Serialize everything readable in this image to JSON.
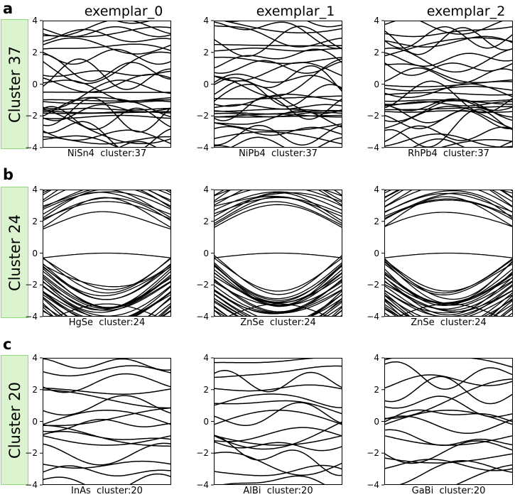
{
  "panel_letters": [
    "a",
    "b",
    "c"
  ],
  "column_titles": [
    "exemplar_0",
    "exemplar_1",
    "exemplar_2"
  ],
  "row_labels": [
    "Cluster 37",
    "Cluster 24",
    "Cluster 20"
  ],
  "badge_color": "#dcf3d0",
  "badge_border": "#8fd97a",
  "chart_data": [
    {
      "type": "line",
      "panel": "a",
      "cluster": 37,
      "material": "NiSn4",
      "caption": "NiSn4  cluster:37",
      "ylim": [
        -4,
        4
      ],
      "yticks": [
        "4",
        "2",
        "0",
        "−2",
        "−4"
      ],
      "style": "metal",
      "seed": 11
    },
    {
      "type": "line",
      "panel": "a",
      "cluster": 37,
      "material": "NiPb4",
      "caption": "NiPb4  cluster:37",
      "ylim": [
        -4,
        4
      ],
      "yticks": [
        "4",
        "2",
        "0",
        "−2",
        "−4"
      ],
      "style": "metal",
      "seed": 23
    },
    {
      "type": "line",
      "panel": "a",
      "cluster": 37,
      "material": "RhPb4",
      "caption": "RhPb4  cluster:37",
      "ylim": [
        -4,
        4
      ],
      "yticks": [
        "4",
        "2",
        "0",
        "−2",
        "−4"
      ],
      "style": "metal",
      "seed": 37
    },
    {
      "type": "line",
      "panel": "b",
      "cluster": 24,
      "material": "HgSe",
      "caption": "HgSe  cluster:24",
      "ylim": [
        -4,
        4
      ],
      "yticks": [
        "4",
        "2",
        "0",
        "−2",
        "−4"
      ],
      "style": "dense",
      "seed": 41
    },
    {
      "type": "line",
      "panel": "b",
      "cluster": 24,
      "material": "ZnSe",
      "caption": "ZnSe  cluster:24",
      "ylim": [
        -4,
        4
      ],
      "yticks": [
        "4",
        "2",
        "0",
        "−2",
        "−4"
      ],
      "style": "dense",
      "seed": 53
    },
    {
      "type": "line",
      "panel": "b",
      "cluster": 24,
      "material": "ZnSe",
      "caption": "ZnSe  cluster:24",
      "ylim": [
        -4,
        4
      ],
      "yticks": [
        "4",
        "2",
        "0",
        "−2",
        "−4"
      ],
      "style": "dense",
      "seed": 67
    },
    {
      "type": "line",
      "panel": "c",
      "cluster": 20,
      "material": "InAs",
      "caption": "InAs  cluster:20",
      "ylim": [
        -4,
        4
      ],
      "yticks": [
        "4",
        "2",
        "0",
        "−2",
        "−4"
      ],
      "style": "sparse",
      "seed": 71
    },
    {
      "type": "line",
      "panel": "c",
      "cluster": 20,
      "material": "AlBi",
      "caption": "AlBi  cluster:20",
      "ylim": [
        -4,
        4
      ],
      "yticks": [
        "4",
        "2",
        "0",
        "−2",
        "−4"
      ],
      "style": "sparse",
      "seed": 83
    },
    {
      "type": "line",
      "panel": "c",
      "cluster": 20,
      "material": "GaBi",
      "caption": "GaBi  cluster:20",
      "ylim": [
        -4,
        4
      ],
      "yticks": [
        "4",
        "2",
        "0",
        "−2",
        "−4"
      ],
      "style": "sparse",
      "seed": 97
    }
  ]
}
